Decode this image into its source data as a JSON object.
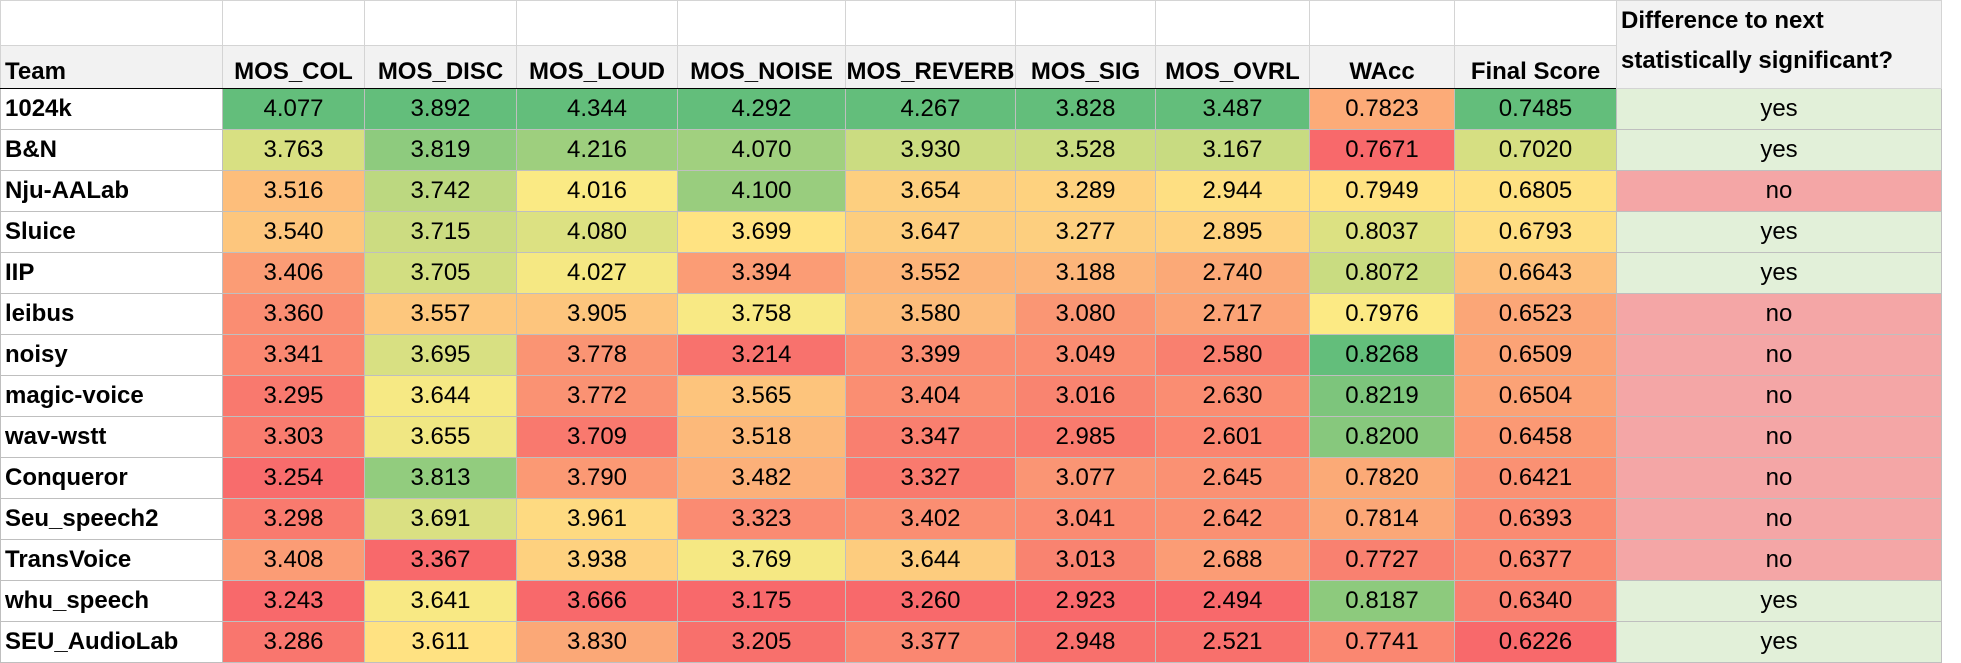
{
  "table": {
    "headers": {
      "team": "Team",
      "metrics": [
        "MOS_COL",
        "MOS_DISC",
        "MOS_LOUD",
        "MOS_NOISE",
        "MOS_REVERB",
        "MOS_SIG",
        "MOS_OVRL",
        "WAcc",
        "Final Score"
      ],
      "significance_line1": "Difference to next",
      "significance_line2": "statistically significant?"
    },
    "rows": [
      {
        "team": "1024k",
        "values": [
          "4.077",
          "3.892",
          "4.344",
          "4.292",
          "4.267",
          "3.828",
          "3.487",
          "0.7823",
          "0.7485"
        ],
        "sig": "yes"
      },
      {
        "team": "B&N",
        "values": [
          "3.763",
          "3.819",
          "4.216",
          "4.070",
          "3.930",
          "3.528",
          "3.167",
          "0.7671",
          "0.7020"
        ],
        "sig": "yes"
      },
      {
        "team": "Nju-AALab",
        "values": [
          "3.516",
          "3.742",
          "4.016",
          "4.100",
          "3.654",
          "3.289",
          "2.944",
          "0.7949",
          "0.6805"
        ],
        "sig": "no"
      },
      {
        "team": "Sluice",
        "values": [
          "3.540",
          "3.715",
          "4.080",
          "3.699",
          "3.647",
          "3.277",
          "2.895",
          "0.8037",
          "0.6793"
        ],
        "sig": "yes"
      },
      {
        "team": "IIP",
        "values": [
          "3.406",
          "3.705",
          "4.027",
          "3.394",
          "3.552",
          "3.188",
          "2.740",
          "0.8072",
          "0.6643"
        ],
        "sig": "yes"
      },
      {
        "team": "leibus",
        "values": [
          "3.360",
          "3.557",
          "3.905",
          "3.758",
          "3.580",
          "3.080",
          "2.717",
          "0.7976",
          "0.6523"
        ],
        "sig": "no"
      },
      {
        "team": "noisy",
        "values": [
          "3.341",
          "3.695",
          "3.778",
          "3.214",
          "3.399",
          "3.049",
          "2.580",
          "0.8268",
          "0.6509"
        ],
        "sig": "no"
      },
      {
        "team": "magic-voice",
        "values": [
          "3.295",
          "3.644",
          "3.772",
          "3.565",
          "3.404",
          "3.016",
          "2.630",
          "0.8219",
          "0.6504"
        ],
        "sig": "no"
      },
      {
        "team": "wav-wstt",
        "values": [
          "3.303",
          "3.655",
          "3.709",
          "3.518",
          "3.347",
          "2.985",
          "2.601",
          "0.8200",
          "0.6458"
        ],
        "sig": "no"
      },
      {
        "team": "Conqueror",
        "values": [
          "3.254",
          "3.813",
          "3.790",
          "3.482",
          "3.327",
          "3.077",
          "2.645",
          "0.7820",
          "0.6421"
        ],
        "sig": "no"
      },
      {
        "team": "Seu_speech2",
        "values": [
          "3.298",
          "3.691",
          "3.961",
          "3.323",
          "3.402",
          "3.041",
          "2.642",
          "0.7814",
          "0.6393"
        ],
        "sig": "no"
      },
      {
        "team": "TransVoice",
        "values": [
          "3.408",
          "3.367",
          "3.938",
          "3.769",
          "3.644",
          "3.013",
          "2.688",
          "0.7727",
          "0.6377"
        ],
        "sig": "no"
      },
      {
        "team": "whu_speech",
        "values": [
          "3.243",
          "3.641",
          "3.666",
          "3.175",
          "3.260",
          "2.923",
          "2.494",
          "0.8187",
          "0.6340"
        ],
        "sig": "yes"
      },
      {
        "team": "SEU_AudioLab",
        "values": [
          "3.286",
          "3.611",
          "3.830",
          "3.205",
          "3.377",
          "2.948",
          "2.521",
          "0.7741",
          "0.6226"
        ],
        "sig": "yes"
      }
    ]
  },
  "colors": {
    "scale_low": "#f8696b",
    "scale_mid": "#ffeb84",
    "scale_high": "#63be7b",
    "sig_yes_fill": "#e2f0d9",
    "sig_no_fill": "#f4a6a6",
    "header_fill": "#f2f2f2"
  }
}
